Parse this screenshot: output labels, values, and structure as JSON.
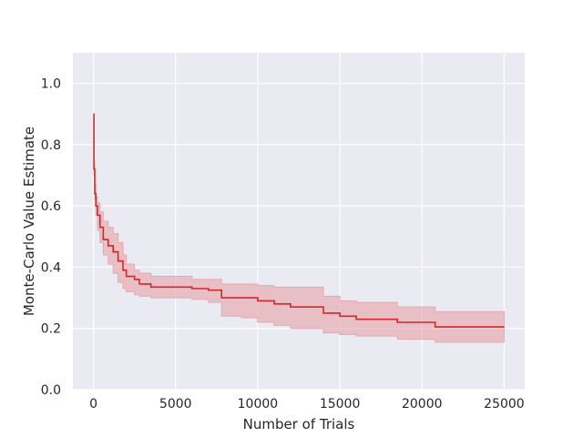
{
  "chart_data": {
    "type": "line",
    "xlabel": "Number of Trials",
    "ylabel": "Monte-Carlo Value Estimate",
    "xlim": [
      -1250,
      26250
    ],
    "ylim": [
      0.0,
      1.1
    ],
    "x_ticks": [
      0,
      5000,
      10000,
      15000,
      20000,
      25000
    ],
    "x_tick_labels": [
      "0",
      "5000",
      "10000",
      "15000",
      "20000",
      "25000"
    ],
    "y_ticks": [
      0.0,
      0.2,
      0.4,
      0.6,
      0.8,
      1.0
    ],
    "y_tick_labels": [
      "0.0",
      "0.2",
      "0.4",
      "0.6",
      "0.8",
      "1.0"
    ],
    "grid": true,
    "background_color": "#eaeaf2",
    "grid_color": "#ffffff",
    "series": [
      {
        "color": "#d62728",
        "band_color": "#e8a8ae",
        "x": [
          0,
          30,
          80,
          150,
          250,
          400,
          600,
          900,
          1200,
          1500,
          1800,
          2000,
          2500,
          2800,
          3500,
          5000,
          6000,
          7000,
          7800,
          9000,
          10000,
          11000,
          12000,
          14000,
          15000,
          16000,
          18500,
          20800,
          25000
        ],
        "y": [
          0.9,
          0.72,
          0.64,
          0.6,
          0.57,
          0.53,
          0.49,
          0.47,
          0.45,
          0.42,
          0.39,
          0.37,
          0.36,
          0.345,
          0.335,
          0.335,
          0.33,
          0.325,
          0.3,
          0.3,
          0.29,
          0.28,
          0.27,
          0.25,
          0.24,
          0.23,
          0.22,
          0.205,
          0.205
        ],
        "lower": [
          0.9,
          0.7,
          0.62,
          0.57,
          0.52,
          0.48,
          0.44,
          0.41,
          0.38,
          0.35,
          0.33,
          0.32,
          0.31,
          0.305,
          0.3,
          0.3,
          0.295,
          0.285,
          0.24,
          0.235,
          0.22,
          0.21,
          0.2,
          0.185,
          0.18,
          0.175,
          0.165,
          0.155,
          0.155
        ],
        "upper": [
          0.9,
          0.74,
          0.67,
          0.63,
          0.61,
          0.58,
          0.55,
          0.53,
          0.51,
          0.48,
          0.44,
          0.41,
          0.39,
          0.38,
          0.37,
          0.37,
          0.36,
          0.36,
          0.345,
          0.345,
          0.34,
          0.335,
          0.335,
          0.305,
          0.29,
          0.285,
          0.27,
          0.255,
          0.255
        ]
      }
    ]
  }
}
